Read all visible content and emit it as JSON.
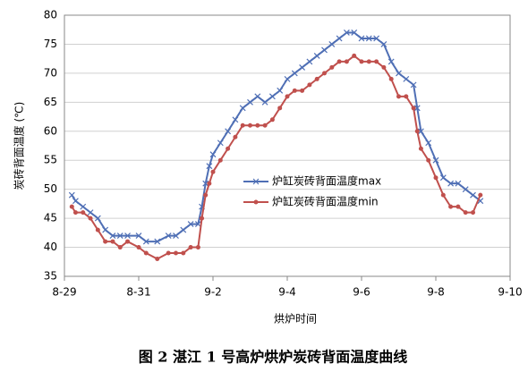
{
  "chart_data": {
    "type": "line",
    "title": "图 2 湛江 1 号高炉烘炉炭砖背面温度曲线",
    "x_label": "烘炉时间",
    "y_label": "炭砖背面温度 (℃)",
    "x": [
      0.2,
      0.3,
      0.5,
      0.7,
      0.9,
      1.1,
      1.3,
      1.5,
      1.7,
      2.0,
      2.2,
      2.5,
      2.8,
      3.0,
      3.2,
      3.4,
      3.6,
      3.7,
      3.8,
      3.9,
      4.0,
      4.2,
      4.4,
      4.6,
      4.8,
      5.0,
      5.2,
      5.4,
      5.6,
      5.8,
      6.0,
      6.2,
      6.4,
      6.6,
      6.8,
      7.0,
      7.2,
      7.4,
      7.6,
      7.8,
      8.0,
      8.2,
      8.4,
      8.6,
      8.8,
      9.0,
      9.2,
      9.4,
      9.5,
      9.6,
      9.8,
      10.0,
      10.2,
      10.4,
      10.6,
      10.8,
      11.0,
      11.2
    ],
    "series": [
      {
        "name": "炉缸炭砖背面温度max",
        "color": "#4f6fb5",
        "marker": "x",
        "values": [
          49,
          48,
          47,
          46,
          45,
          43,
          42,
          42,
          42,
          42,
          41,
          41,
          42,
          42,
          43,
          44,
          44,
          47,
          51,
          54,
          56,
          58,
          60,
          62,
          64,
          65,
          66,
          65,
          66,
          67,
          69,
          70,
          71,
          72,
          73,
          74,
          75,
          76,
          77,
          77,
          76,
          76,
          76,
          75,
          72,
          70,
          69,
          68,
          64,
          60,
          58,
          55,
          52,
          51,
          51,
          50,
          49,
          48
        ]
      },
      {
        "name": "炉缸炭砖背面温度min",
        "color": "#c0504d",
        "marker": "circle",
        "values": [
          47,
          46,
          46,
          45,
          43,
          41,
          41,
          40,
          41,
          40,
          39,
          38,
          39,
          39,
          39,
          40,
          40,
          45,
          49,
          51,
          53,
          55,
          57,
          59,
          61,
          61,
          61,
          61,
          62,
          64,
          66,
          67,
          67,
          68,
          69,
          70,
          71,
          72,
          72,
          73,
          72,
          72,
          72,
          71,
          69,
          66,
          66,
          64,
          60,
          57,
          55,
          52,
          49,
          47,
          47,
          46,
          46,
          49
        ]
      }
    ],
    "xlim": [
      0,
      12
    ],
    "xticks": [
      {
        "value": 0,
        "label": "8-29"
      },
      {
        "value": 2,
        "label": "8-31"
      },
      {
        "value": 4,
        "label": "9-2"
      },
      {
        "value": 6,
        "label": "9-4"
      },
      {
        "value": 8,
        "label": "9-6"
      },
      {
        "value": 10,
        "label": "9-8"
      },
      {
        "value": 12,
        "label": "9-10"
      }
    ],
    "ylim": [
      35,
      80
    ],
    "yticks": [
      35,
      40,
      45,
      50,
      55,
      60,
      65,
      70,
      75,
      80
    ],
    "grid": true
  }
}
